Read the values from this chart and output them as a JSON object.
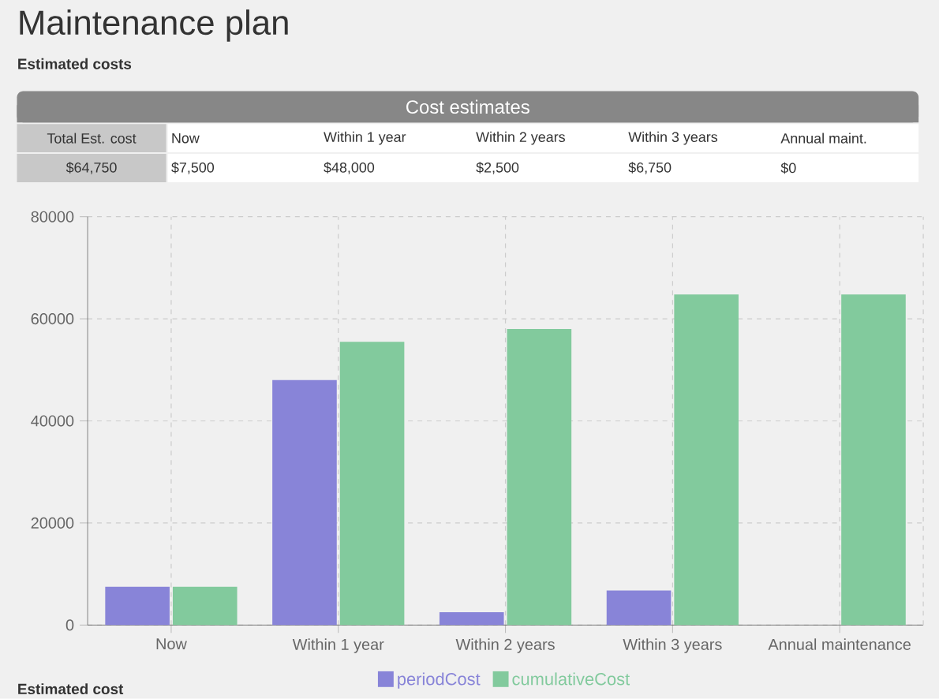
{
  "chart_data": [
    {
      "type": "other",
      "title": "Maintenance plan",
      "subtitle": "Estimated costs",
      "annotations": [
        "Cost estimates"
      ],
      "categories": [
        "Total Est. cost",
        "Now",
        "Within 1 year",
        "Within 2 years",
        "Within 3 years",
        "Annual maint."
      ],
      "value_labels": [
        "$64,750",
        "$7,500",
        "$48,000",
        "$2,500",
        "$6,750",
        "$0"
      ]
    },
    {
      "type": "bar",
      "categories": [
        "Now",
        "Within 1 year",
        "Within 2 years",
        "Within 3 years",
        "Annual maintenance"
      ],
      "series": [
        {
          "name": "periodCost",
          "color": "#8884d8",
          "values": [
            7500,
            48000,
            2500,
            6750,
            0
          ]
        },
        {
          "name": "cumulativeCost",
          "color": "#82ca9d",
          "values": [
            7500,
            55500,
            58000,
            64750,
            64750
          ]
        }
      ],
      "ylim": [
        0,
        80000
      ],
      "yticks": [
        0,
        20000,
        40000,
        60000,
        80000
      ],
      "grid": true,
      "legend": "bottom",
      "annotations": [
        "Estimated cost"
      ]
    }
  ]
}
